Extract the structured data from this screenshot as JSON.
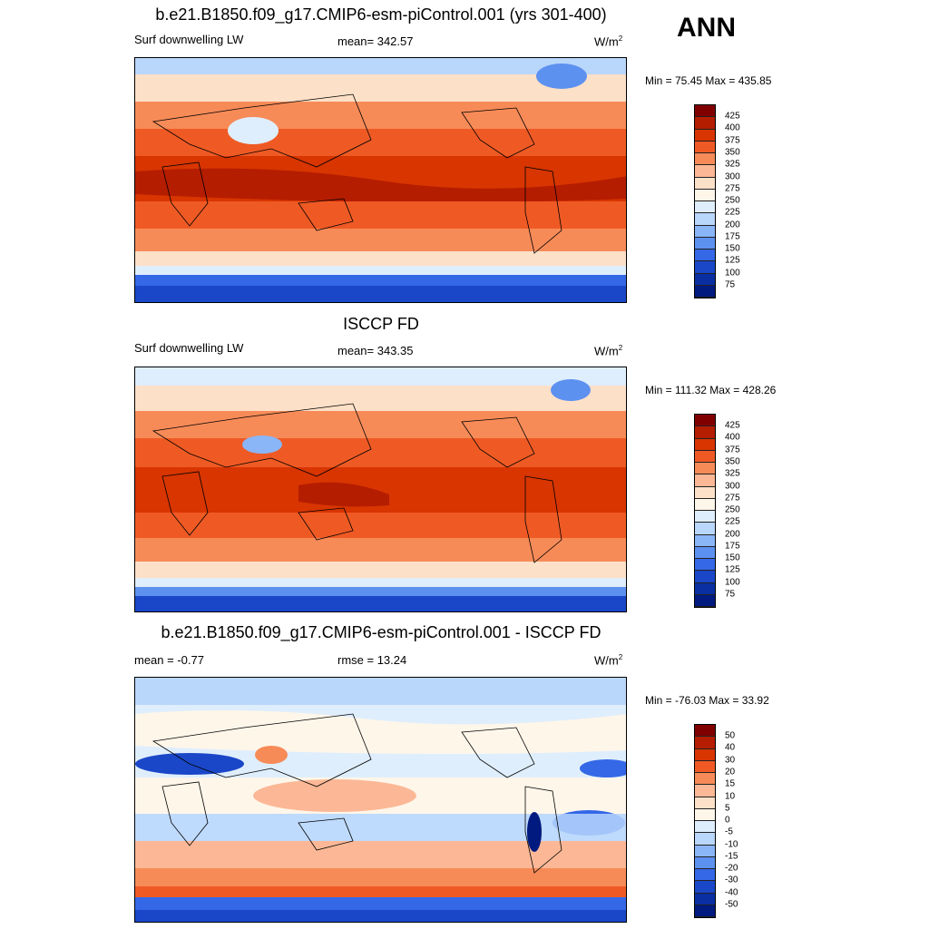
{
  "season": "ANN",
  "panels": [
    {
      "title": "b.e21.B1850.f09_g17.CMIP6-esm-piControl.001 (yrs 301-400)",
      "left_label": "Surf downwelling LW",
      "center_label": "mean= 342.57",
      "units": "W/m",
      "units_sup": "2",
      "minmax": "Min =  75.45 Max = 435.85",
      "colorbar": [
        "425",
        "400",
        "375",
        "350",
        "325",
        "300",
        "275",
        "250",
        "225",
        "200",
        "175",
        "150",
        "125",
        "100",
        "75"
      ],
      "colors": [
        "#800000",
        "#b51d00",
        "#d83500",
        "#ef5a24",
        "#f78b58",
        "#fcb896",
        "#fde0c8",
        "#fff6ea",
        "#dfeefc",
        "#b9d6fb",
        "#8ab6f7",
        "#5d91f0",
        "#3468e7",
        "#1a47c8",
        "#0a2fa2",
        "#001a80"
      ]
    },
    {
      "title": "ISCCP FD",
      "left_label": "Surf downwelling LW",
      "center_label": "mean= 343.35",
      "units": "W/m",
      "units_sup": "2",
      "minmax": "Min = 111.32 Max = 428.26",
      "colorbar": [
        "425",
        "400",
        "375",
        "350",
        "325",
        "300",
        "275",
        "250",
        "225",
        "200",
        "175",
        "150",
        "125",
        "100",
        "75"
      ],
      "colors": [
        "#800000",
        "#b51d00",
        "#d83500",
        "#ef5a24",
        "#f78b58",
        "#fcb896",
        "#fde0c8",
        "#fff6ea",
        "#dfeefc",
        "#b9d6fb",
        "#8ab6f7",
        "#5d91f0",
        "#3468e7",
        "#1a47c8",
        "#0a2fa2",
        "#001a80"
      ]
    },
    {
      "title": "b.e21.B1850.f09_g17.CMIP6-esm-piControl.001 - ISCCP FD",
      "left_label": "mean =  -0.77",
      "center_label": "rmse =  13.24",
      "units": "W/m",
      "units_sup": "2",
      "minmax": "Min = -76.03 Max =  33.92",
      "colorbar": [
        "50",
        "40",
        "30",
        "20",
        "15",
        "10",
        "5",
        "0",
        "-5",
        "-10",
        "-15",
        "-20",
        "-30",
        "-40",
        "-50"
      ],
      "colors": [
        "#800000",
        "#b51d00",
        "#d83500",
        "#ef5a24",
        "#f78b58",
        "#fcb896",
        "#fde0c8",
        "#fff6ea",
        "#dfeefc",
        "#b9d6fb",
        "#8ab6f7",
        "#5d91f0",
        "#3468e7",
        "#1a47c8",
        "#0a2fa2",
        "#001a80"
      ]
    }
  ]
}
